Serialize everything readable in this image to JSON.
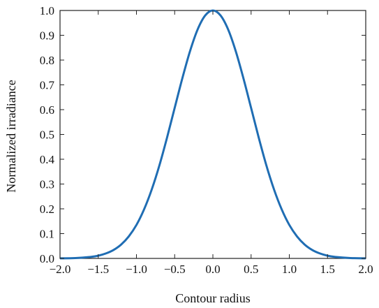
{
  "chart_data": {
    "type": "line",
    "xlabel": "Contour radius",
    "ylabel": "Normalized irradiance",
    "xlim": [
      -2.0,
      2.0
    ],
    "ylim": [
      0.0,
      1.0
    ],
    "x_ticks": [
      "−2.0",
      "−1.5",
      "−1.0",
      "−0.5",
      "0.0",
      "0.5",
      "1.0",
      "1.5",
      "2.0"
    ],
    "y_ticks": [
      "0.0",
      "0.1",
      "0.2",
      "0.3",
      "0.4",
      "0.5",
      "0.6",
      "0.7",
      "0.8",
      "0.9",
      "1.0"
    ],
    "grid": false,
    "line_color": "#1f6db3",
    "series": [
      {
        "x": [
          -2.0,
          -1.8,
          -1.6,
          -1.5,
          -1.4,
          -1.3,
          -1.2,
          -1.1,
          -1.0,
          -0.9,
          -0.8,
          -0.7,
          -0.6,
          -0.5,
          -0.4,
          -0.3,
          -0.2,
          -0.1,
          0.0,
          0.1,
          0.2,
          0.3,
          0.4,
          0.5,
          0.6,
          0.7,
          0.8,
          0.9,
          1.0,
          1.1,
          1.2,
          1.3,
          1.4,
          1.5,
          1.6,
          1.8,
          2.0
        ],
        "values": [
          0.0003,
          0.0015,
          0.006,
          0.011,
          0.02,
          0.034,
          0.056,
          0.089,
          0.135,
          0.198,
          0.278,
          0.375,
          0.487,
          0.607,
          0.726,
          0.835,
          0.923,
          0.98,
          1.0,
          0.98,
          0.923,
          0.835,
          0.726,
          0.607,
          0.487,
          0.375,
          0.278,
          0.198,
          0.135,
          0.089,
          0.056,
          0.034,
          0.02,
          0.011,
          0.006,
          0.0015,
          0.0003
        ]
      }
    ]
  }
}
